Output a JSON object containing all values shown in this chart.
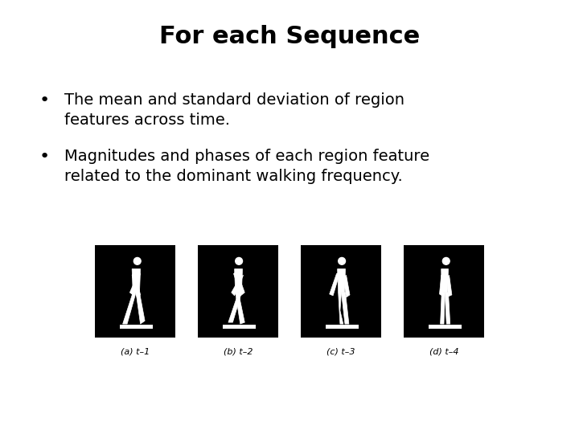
{
  "title": "For each Sequence",
  "title_fontsize": 22,
  "title_fontweight": "bold",
  "bullet1_line1": "The mean and standard deviation of region",
  "bullet1_line2": "features across time.",
  "bullet2_line1": "Magnitudes and phases of each region feature",
  "bullet2_line2": "related to the dominant walking frequency.",
  "bullet_fontsize": 14,
  "captions": [
    "(a) t–1",
    "(b) t–2",
    "(c) t–3",
    "(d) t–4"
  ],
  "caption_fontsize": 8,
  "background_color": "#ffffff",
  "text_color": "#000000"
}
